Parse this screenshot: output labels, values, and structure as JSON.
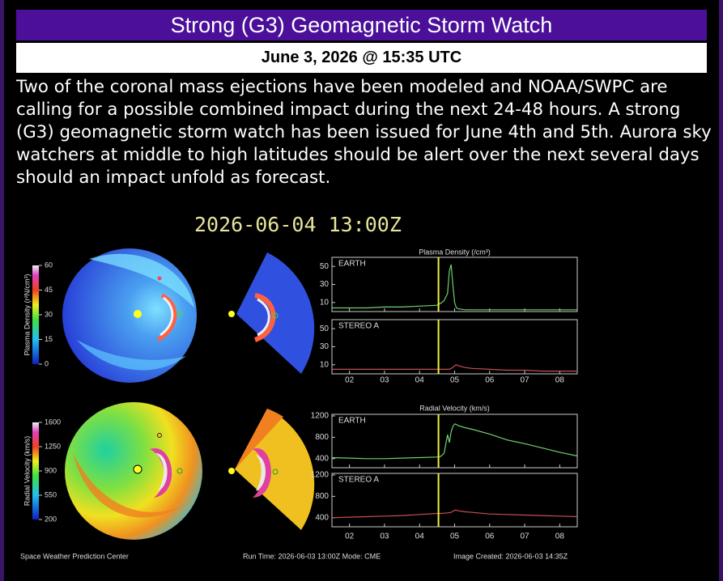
{
  "header": {
    "title": "Strong (G3) Geomagnetic Storm Watch",
    "date": "June 3, 2026 @ 15:35 UTC"
  },
  "body": {
    "text": "Two of the coronal mass ejections have been modeled and NOAA/SWPC are calling for a possible combined impact during the next 24-48 hours. A strong (G3) geomagnetic storm watch has been issued for June 4th and 5th. Aurora sky watchers at middle to high latitudes should be alert over the next several days should an impact unfold as forecast."
  },
  "image": {
    "timestamp": "2026-06-04 13:00Z",
    "colorbars": [
      {
        "label": "Plasma Density (r²N/cm³)",
        "clim": [
          0,
          60
        ],
        "ticks": [
          0,
          15,
          30,
          45,
          60
        ]
      },
      {
        "label": "Radial Velocity (km/s)",
        "clim": [
          200,
          1600
        ],
        "ticks": [
          200,
          550,
          900,
          1250,
          1600
        ]
      }
    ],
    "plots": [
      {
        "title": "Plasma Density (/cm³)",
        "xlim": [
          1.5,
          8.5
        ],
        "xticks": [
          {
            "value": 2,
            "label": "02"
          },
          {
            "value": 3,
            "label": "03"
          },
          {
            "value": 4,
            "label": "04"
          },
          {
            "value": 5,
            "label": "05"
          },
          {
            "value": 6,
            "label": "06"
          },
          {
            "value": 7,
            "label": "07"
          },
          {
            "value": 8,
            "label": "08"
          }
        ],
        "now": 4.54,
        "x": [
          1.5,
          2,
          2.5,
          3,
          3.5,
          4,
          4.5,
          4.6,
          4.7,
          4.8,
          4.85,
          4.9,
          4.95,
          5,
          5.05,
          5.1,
          5.3,
          5.5,
          6,
          6.5,
          7,
          7.5,
          8,
          8.5
        ],
        "panels": [
          {
            "name": "EARTH",
            "color": "#6fd06f",
            "ylim": [
              0,
              60
            ],
            "yticks": [
              10,
              30,
              50
            ],
            "values": [
              4,
              4,
              4,
              5,
              5,
              6,
              7,
              9,
              12,
              20,
              45,
              52,
              30,
              10,
              4,
              3,
              2,
              2,
              2,
              2,
              2,
              2,
              2,
              2
            ]
          },
          {
            "name": "STEREO A",
            "color": "#c85050",
            "ylim": [
              0,
              60
            ],
            "yticks": [
              10,
              30,
              50
            ],
            "values": [
              5,
              5,
              5,
              5,
              5,
              5,
              5,
              5,
              5,
              5,
              5,
              6,
              7,
              9,
              10,
              9,
              7,
              6,
              5,
              4,
              4,
              3,
              3,
              3
            ]
          }
        ]
      },
      {
        "title": "Radial Velocity (km/s)",
        "xlim": [
          1.5,
          8.5
        ],
        "xticks": [
          {
            "value": 2,
            "label": "02"
          },
          {
            "value": 3,
            "label": "03"
          },
          {
            "value": 4,
            "label": "04"
          },
          {
            "value": 5,
            "label": "05"
          },
          {
            "value": 6,
            "label": "06"
          },
          {
            "value": 7,
            "label": "07"
          },
          {
            "value": 8,
            "label": "08"
          }
        ],
        "now": 4.54,
        "x": [
          1.5,
          2,
          2.5,
          3,
          3.5,
          4,
          4.5,
          4.6,
          4.7,
          4.8,
          4.85,
          4.9,
          4.95,
          5,
          5.05,
          5.1,
          5.3,
          5.5,
          6,
          6.5,
          7,
          7.5,
          8,
          8.5
        ],
        "panels": [
          {
            "name": "EARTH",
            "color": "#6fd06f",
            "ylim": [
              230,
              1230
            ],
            "yticks": [
              400,
              800,
              1200
            ],
            "values": [
              420,
              410,
              400,
              400,
              410,
              420,
              430,
              440,
              500,
              850,
              700,
              900,
              1000,
              1050,
              1040,
              1020,
              980,
              950,
              860,
              750,
              680,
              600,
              520,
              450
            ]
          },
          {
            "name": "STEREO A",
            "color": "#c85050",
            "ylim": [
              230,
              1230
            ],
            "yticks": [
              400,
              800,
              1200
            ],
            "values": [
              400,
              410,
              420,
              430,
              440,
              460,
              480,
              480,
              485,
              490,
              495,
              500,
              520,
              540,
              540,
              530,
              510,
              500,
              470,
              460,
              450,
              440,
              430,
              420
            ]
          }
        ]
      }
    ],
    "footer": {
      "left": "Space Weather Prediction Center",
      "center": "Run Time: 2026-06-03 13:00Z  Mode: CME",
      "right": "Image Created: 2026-06-03 14:35Z"
    }
  }
}
